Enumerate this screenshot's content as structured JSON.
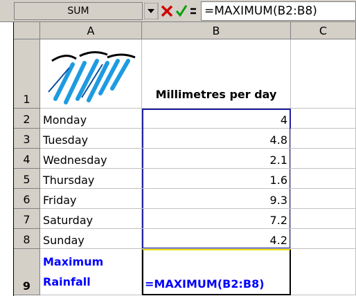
{
  "formula_bar": {
    "name_box": "SUM",
    "formula": "=MAXIMUM(B2:B8)"
  },
  "sheet": {
    "columns": [
      "A",
      "B",
      "C"
    ],
    "rows": [
      {
        "number": "1",
        "a": null,
        "b": "Millimetres per day"
      },
      {
        "number": "2",
        "a": "Monday",
        "b": 4
      },
      {
        "number": "3",
        "a": "Tuesday",
        "b": 4.8
      },
      {
        "number": "4",
        "a": "Wednesday",
        "b": 2.1
      },
      {
        "number": "5",
        "a": "Thursday",
        "b": 1.6
      },
      {
        "number": "6",
        "a": "Friday",
        "b": 9.3
      },
      {
        "number": "7",
        "a": "Saturday",
        "b": 7.2
      },
      {
        "number": "8",
        "a": "Sunday",
        "b": 4.2
      },
      {
        "number": "9",
        "a": "Maximum Rainfall",
        "b": "=MAXIMUM(B2:B8)"
      }
    ]
  }
}
